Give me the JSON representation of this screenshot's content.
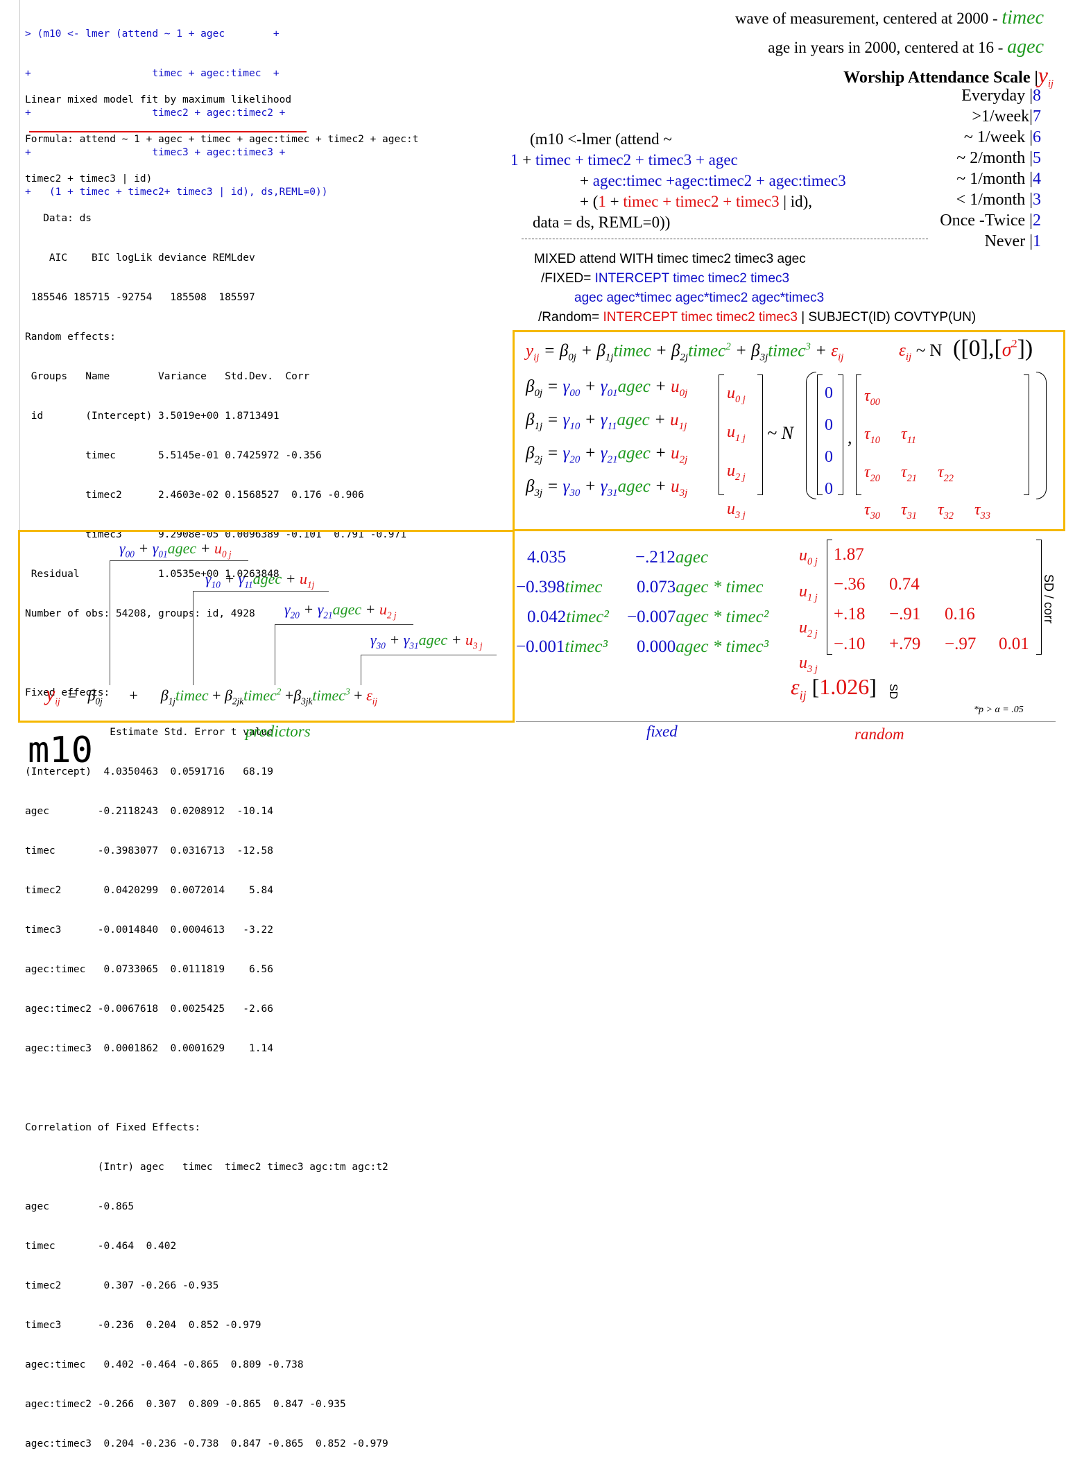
{
  "console": {
    "cmd": [
      "> (m10 <- lmer (attend ~ 1 + agec        +",
      "+                    timec + agec:timec  +",
      "+                    timec2 + agec:timec2 +",
      "+                    timec3 + agec:timec3 +",
      "+   (1 + timec + timec2+ timec3 | id), ds,REML=0))"
    ],
    "out": [
      "Linear mixed model fit by maximum likelihood",
      "Formula: attend ~ 1 + agec + timec + agec:timec + timec2 + agec:t",
      "timec2 + timec3 | id)",
      "   Data: ds",
      "    AIC    BIC logLik deviance REMLdev",
      " 185546 185715 -92754   185508  185597",
      "Random effects:",
      " Groups   Name        Variance   Std.Dev.  Corr",
      " id       (Intercept) 3.5019e+00 1.8713491",
      "          timec       5.5145e-01 0.7425972 -0.356",
      "          timec2      2.4603e-02 0.1568527  0.176 -0.906",
      "          timec3      9.2908e-05 0.0096389 -0.101  0.791 -0.971",
      " Residual             1.0535e+00 1.0263848",
      "Number of obs: 54208, groups: id, 4928",
      "",
      "Fixed effects:",
      "              Estimate Std. Error t value",
      "(Intercept)  4.0350463  0.0591716   68.19",
      "agec        -0.2118243  0.0208912  -10.14",
      "timec       -0.3983077  0.0316713  -12.58",
      "timec2       0.0420299  0.0072014    5.84",
      "timec3      -0.0014840  0.0004613   -3.22",
      "agec:timec   0.0733065  0.0111819    6.56",
      "agec:timec2 -0.0067618  0.0025425   -2.66",
      "agec:timec3  0.0001862  0.0001629    1.14",
      "",
      "Correlation of Fixed Effects:",
      "            (Intr) agec   timec  timec2 timec3 agc:tm agc:t2",
      "agec        -0.865",
      "timec       -0.464  0.402",
      "timec2       0.307 -0.266 -0.935",
      "timec3      -0.236  0.204  0.852 -0.979",
      "agec:timec   0.402 -0.464 -0.865  0.809 -0.738",
      "agec:timec2 -0.266  0.307  0.809 -0.865  0.847 -0.935",
      "agec:timec3  0.204 -0.236 -0.738  0.847 -0.865  0.852 -0.979"
    ]
  },
  "legend": {
    "timec_desc": "wave of measurement, centered at 2000 -",
    "timec_var": "timec",
    "agec_desc": "age in years in 2000, centered at 16  -",
    "agec_var": "agec"
  },
  "scale": {
    "title": "Worship Attendance Scale |",
    "y": "y",
    "ysub": "ij",
    "rows": [
      {
        "label": "Everyday |",
        "num": "8"
      },
      {
        "label": ">1/week|",
        "num": "7"
      },
      {
        "label": "~ 1/week |",
        "num": "6"
      },
      {
        "label": "~ 2/month |",
        "num": "5"
      },
      {
        "label": "~ 1/month |",
        "num": "4"
      },
      {
        "label": "< 1/month |",
        "num": "3"
      },
      {
        "label": "Once -Twice |",
        "num": "2"
      },
      {
        "label": "Never |",
        "num": "1"
      }
    ]
  },
  "rcode": {
    "l1": "(m10 <-lmer (attend ~",
    "l2a": "1",
    "l2b": " + ",
    "l2c": "timec + timec2 + timec3 + agec",
    "l3a": "+ ",
    "l3b": "agec:timec +agec:timec2 + agec:timec3",
    "l4a": "+ (",
    "l4b": "1",
    "l4c": " + ",
    "l4d": "timec + timec2 + timec3",
    "l4e": " | id),",
    "l5": "data = ds, REML=0))"
  },
  "spss": {
    "l1": "MIXED attend WITH timec timec2 timec3 agec",
    "l2a": "/FIXED= ",
    "l2b": "INTERCEPT timec timec2 timec3",
    "l3": "agec agec*timec agec*timec2 agec*timec3",
    "l4a": "/Random= ",
    "l4b": "INTERCEPT timec timec2 timec3",
    "l4c": " | SUBJECT(ID) COVTYP(UN)"
  },
  "fixed": {
    "rows": [
      {
        "a": "4.035",
        "b": "",
        "c": "−.212",
        "d": "agec"
      },
      {
        "a": "−0.398",
        "b": "timec",
        "c": "0.073",
        "d": "agec * timec"
      },
      {
        "a": "0.042",
        "b": "timec²",
        "c": "−0.007",
        "d": "agec * timec²"
      },
      {
        "a": "−0.001",
        "b": "timec³",
        "c": "0.000",
        "d": "agec * timec³"
      }
    ]
  },
  "random": {
    "u": [
      "u",
      "u",
      "u",
      "u"
    ],
    "usub": [
      "0 j",
      "1 j",
      "2 j",
      "3 j"
    ],
    "row1": [
      "1.87"
    ],
    "row2": [
      "−.36",
      "0.74"
    ],
    "row3": [
      "+.18",
      "−.91",
      "0.16"
    ],
    "row4": [
      "−.10",
      "+.79",
      "−.97",
      "0.01"
    ],
    "sd_corr": "SD / corr",
    "eps": "ε",
    "eps_sub": "ij",
    "eps_val": "1.026",
    "eps_sd": "SD",
    "note": "*p > α = .05"
  },
  "labels": {
    "predictors": "predictors",
    "fixed": "fixed",
    "random": "random",
    "model": "m10"
  }
}
